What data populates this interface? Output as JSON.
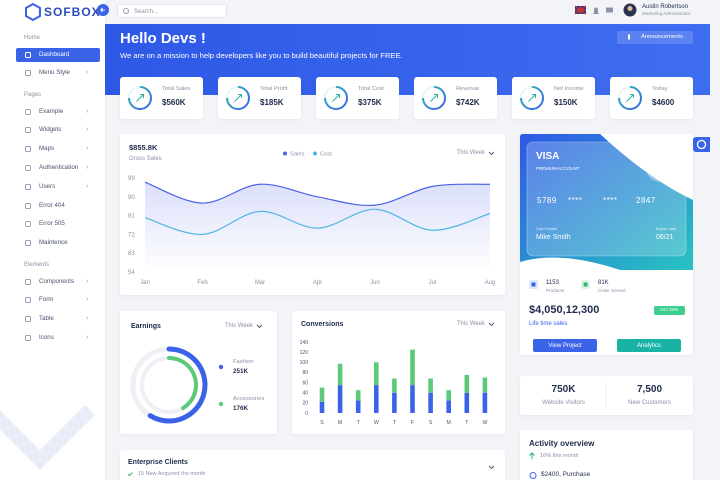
{
  "sidebar": {
    "logo": "SOFBOX",
    "sections": [
      {
        "title": "Home",
        "items": [
          {
            "label": "Dashboard",
            "active": true
          },
          {
            "label": "Menu Style",
            "arrow": true
          }
        ]
      },
      {
        "title": "Pages",
        "items": [
          {
            "label": "Example",
            "arrow": true
          },
          {
            "label": "Widgets",
            "arrow": true
          },
          {
            "label": "Maps",
            "arrow": true
          },
          {
            "label": "Authentication",
            "arrow": true
          },
          {
            "label": "Users",
            "arrow": true
          },
          {
            "label": "Error 404"
          },
          {
            "label": "Error 505"
          },
          {
            "label": "Maintence"
          }
        ]
      },
      {
        "title": "Elements",
        "items": [
          {
            "label": "Components",
            "arrow": true
          },
          {
            "label": "Form",
            "arrow": true
          },
          {
            "label": "Table",
            "arrow": true
          },
          {
            "label": "Icons",
            "arrow": true
          }
        ]
      }
    ]
  },
  "topbar": {
    "search_placeholder": "Search...",
    "user_name": "Austin Robertson",
    "user_role": "Marketing Administrator"
  },
  "banner": {
    "title": "Hello Devs !",
    "subtitle": "We are on a mission to help developers like you to build beautiful projects for FREE.",
    "button": "Announcements"
  },
  "stats": [
    {
      "label": "Total Sales",
      "value": "$560K"
    },
    {
      "label": "Total Profit",
      "value": "$185K"
    },
    {
      "label": "Total Cost",
      "value": "$375K"
    },
    {
      "label": "Revenue",
      "value": "$742K"
    },
    {
      "label": "Net Income",
      "value": "$150K"
    },
    {
      "label": "Today",
      "value": "$4600"
    }
  ],
  "chart_data": [
    {
      "type": "line",
      "title": "$855.8K",
      "subtitle": "Gross Sales",
      "filter": "This Week",
      "categories": [
        "Jan",
        "Feb",
        "Mar",
        "Apr",
        "Jun",
        "Jul",
        "Aug"
      ],
      "series": [
        {
          "name": "Sales",
          "color": "#4a63e6",
          "values": [
            97,
            87,
            96,
            90,
            86,
            95,
            96
          ]
        },
        {
          "name": "Cost",
          "color": "#4fb6e3",
          "values": [
            80,
            72,
            83,
            75,
            84,
            74,
            82
          ]
        }
      ],
      "ylim": [
        54,
        99
      ],
      "yticks": [
        54,
        63,
        72,
        81,
        90,
        99
      ],
      "grid": false
    },
    {
      "type": "donut",
      "title": "Earnings",
      "filter": "This Week",
      "categories": [
        "Fashion",
        "Accessories"
      ],
      "values": [
        251000,
        176000
      ],
      "value_labels": [
        "251K",
        "176K"
      ],
      "colors": [
        "#3b63e8",
        "#5cc97a"
      ]
    },
    {
      "type": "bar",
      "stacked": true,
      "title": "Conversions",
      "filter": "This Week",
      "categories": [
        "S",
        "M",
        "T",
        "W",
        "T",
        "F",
        "S",
        "M",
        "T",
        "W"
      ],
      "series": [
        {
          "color": "#3b63e8",
          "values": [
            22,
            55,
            25,
            55,
            40,
            55,
            40,
            25,
            40,
            40
          ]
        },
        {
          "color": "#5cc97a",
          "values": [
            28,
            42,
            20,
            45,
            28,
            70,
            28,
            20,
            35,
            30
          ]
        }
      ],
      "ylim": [
        0,
        140
      ],
      "yticks": [
        0,
        20,
        40,
        60,
        80,
        100,
        120,
        140
      ],
      "grid": false
    }
  ],
  "visa": {
    "brand": "VISA",
    "tier": "PREMIUM ACCOUNT",
    "number": [
      "5789",
      "****",
      "****",
      "2847"
    ],
    "holder_label": "Card Holder",
    "holder": "Mike Smith",
    "expiry_label": "Expire date",
    "expiry": "06/21"
  },
  "sales_summary": {
    "products": "1153",
    "products_label": "Products",
    "orders": "81K",
    "orders_label": "Order Served",
    "total": "$4,050,12,300",
    "badge": "YoY 24%",
    "total_label": "Life time sales",
    "buttons": [
      "View Project",
      "Analytics"
    ]
  },
  "visitors": [
    {
      "value": "750K",
      "label": "Website Visitors"
    },
    {
      "value": "7,500",
      "label": "New Customers"
    }
  ],
  "activity": {
    "title": "Activity overview",
    "change": "16% this month",
    "item": "$2400, Purchase"
  },
  "clients": {
    "title": "Enterprise Clients",
    "note": "15 New Acquired the month"
  }
}
